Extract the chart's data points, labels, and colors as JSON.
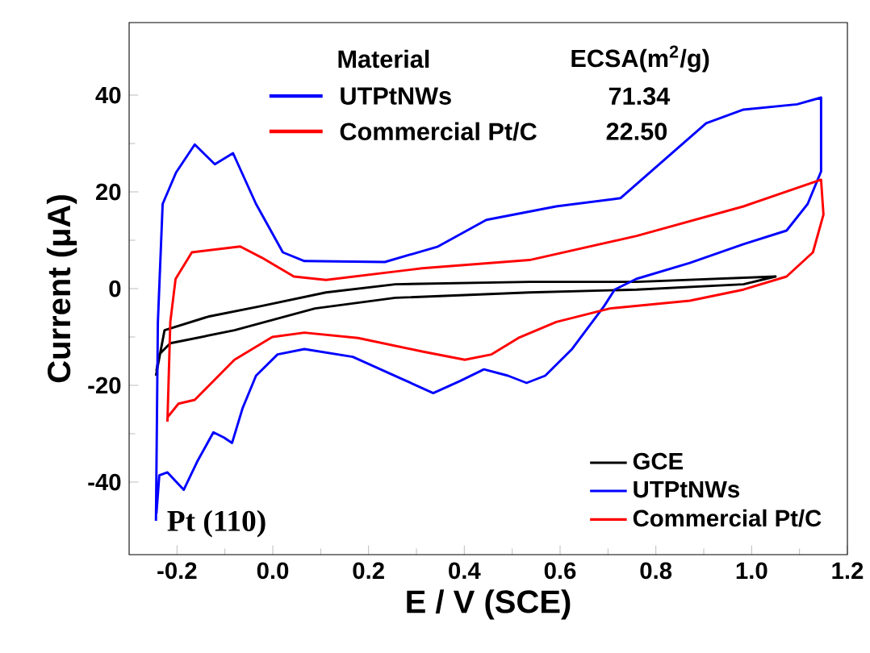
{
  "chart_data": {
    "type": "line",
    "xlabel": "E / V (SCE)",
    "ylabel": "Current (μA)",
    "xlim": [
      -0.3,
      1.2
    ],
    "ylim": [
      -55,
      55
    ],
    "xticks": [
      -0.2,
      {
        "value": 0,
        "label": "0.0"
      },
      0.2,
      0.4,
      0.6,
      0.8,
      {
        "value": 1,
        "label": "1.0"
      },
      1.2
    ],
    "yticks": [
      -40,
      -20,
      0,
      20,
      40
    ],
    "legend": "bottom right",
    "annotations": [
      "Material",
      "ECSA(m$^{2}$/g)",
      "UTPtNWs",
      "71.34",
      "Commercial Pt/C",
      "22.50",
      "Pt (110)"
    ],
    "series": [
      {
        "name": "GCE",
        "color": "#000000",
        "x": [
          -0.244,
          -0.226,
          -0.135,
          -0.024,
          0.111,
          0.256,
          0.536,
          0.76,
          1.05,
          0.983,
          0.76,
          0.536,
          0.256,
          0.088,
          -0.08,
          -0.214,
          -0.237,
          -0.243
        ],
        "values": [
          -18,
          -8.6,
          -5.8,
          -3.6,
          -0.8,
          0.9,
          1.4,
          1.4,
          2.5,
          0.9,
          -0.2,
          -0.8,
          -1.9,
          -4.1,
          -8.6,
          -11.3,
          -13.6,
          -17
        ]
      },
      {
        "name": "UTPtNWs",
        "color": "#0000ff",
        "x": [
          -0.244,
          -0.24,
          -0.23,
          -0.202,
          -0.163,
          -0.121,
          -0.083,
          -0.035,
          0.021,
          0.066,
          0.234,
          0.345,
          0.446,
          0.592,
          0.726,
          0.815,
          0.905,
          0.983,
          1.095,
          1.145,
          1.145,
          1.117,
          1.073,
          0.983,
          0.871,
          0.759,
          0.714,
          0.692,
          0.625,
          0.569,
          0.53,
          0.491,
          0.441,
          0.391,
          0.335,
          0.268,
          0.167,
          0.066,
          0.01,
          -0.035,
          -0.063,
          -0.085,
          -0.102,
          -0.124,
          -0.158,
          -0.186,
          -0.22,
          -0.237,
          -0.243
        ],
        "values": [
          -48,
          -7,
          17.5,
          24,
          29.8,
          25.7,
          28,
          17.5,
          7.5,
          5.7,
          5.5,
          8.7,
          14.2,
          17,
          18.7,
          26.4,
          34.2,
          37,
          38.1,
          39.5,
          24.2,
          17.5,
          12,
          9.2,
          5.3,
          2,
          -0.2,
          -3.6,
          -12.5,
          -18,
          -19.5,
          -18,
          -16.7,
          -19.1,
          -21.6,
          -18.6,
          -14.1,
          -12.5,
          -13.6,
          -18,
          -24.7,
          -31.9,
          -30.8,
          -29.7,
          -35.8,
          -41.6,
          -38,
          -38.6,
          -46.5
        ]
      },
      {
        "name": "Commercial Pt/C",
        "color": "#ff0000",
        "x": [
          -0.22,
          -0.214,
          -0.203,
          -0.169,
          -0.068,
          -0.023,
          0.044,
          0.111,
          0.312,
          0.536,
          0.76,
          0.983,
          1.145,
          1.15,
          1.128,
          1.073,
          0.983,
          0.871,
          0.704,
          0.592,
          0.513,
          0.457,
          0.401,
          0.312,
          0.178,
          0.066,
          -0.001,
          -0.08,
          -0.135,
          -0.163,
          -0.197,
          -0.219
        ],
        "values": [
          -27.5,
          -6.9,
          2,
          7.5,
          8.7,
          6.4,
          2.5,
          1.8,
          4.2,
          5.9,
          10.9,
          17,
          22.5,
          15.3,
          7.5,
          2.5,
          -0.2,
          -2.5,
          -4.1,
          -6.9,
          -10.2,
          -13.6,
          -14.7,
          -13,
          -10.2,
          -9.1,
          -10,
          -14.7,
          -20.2,
          -23,
          -23.8,
          -26.5
        ]
      }
    ]
  }
}
